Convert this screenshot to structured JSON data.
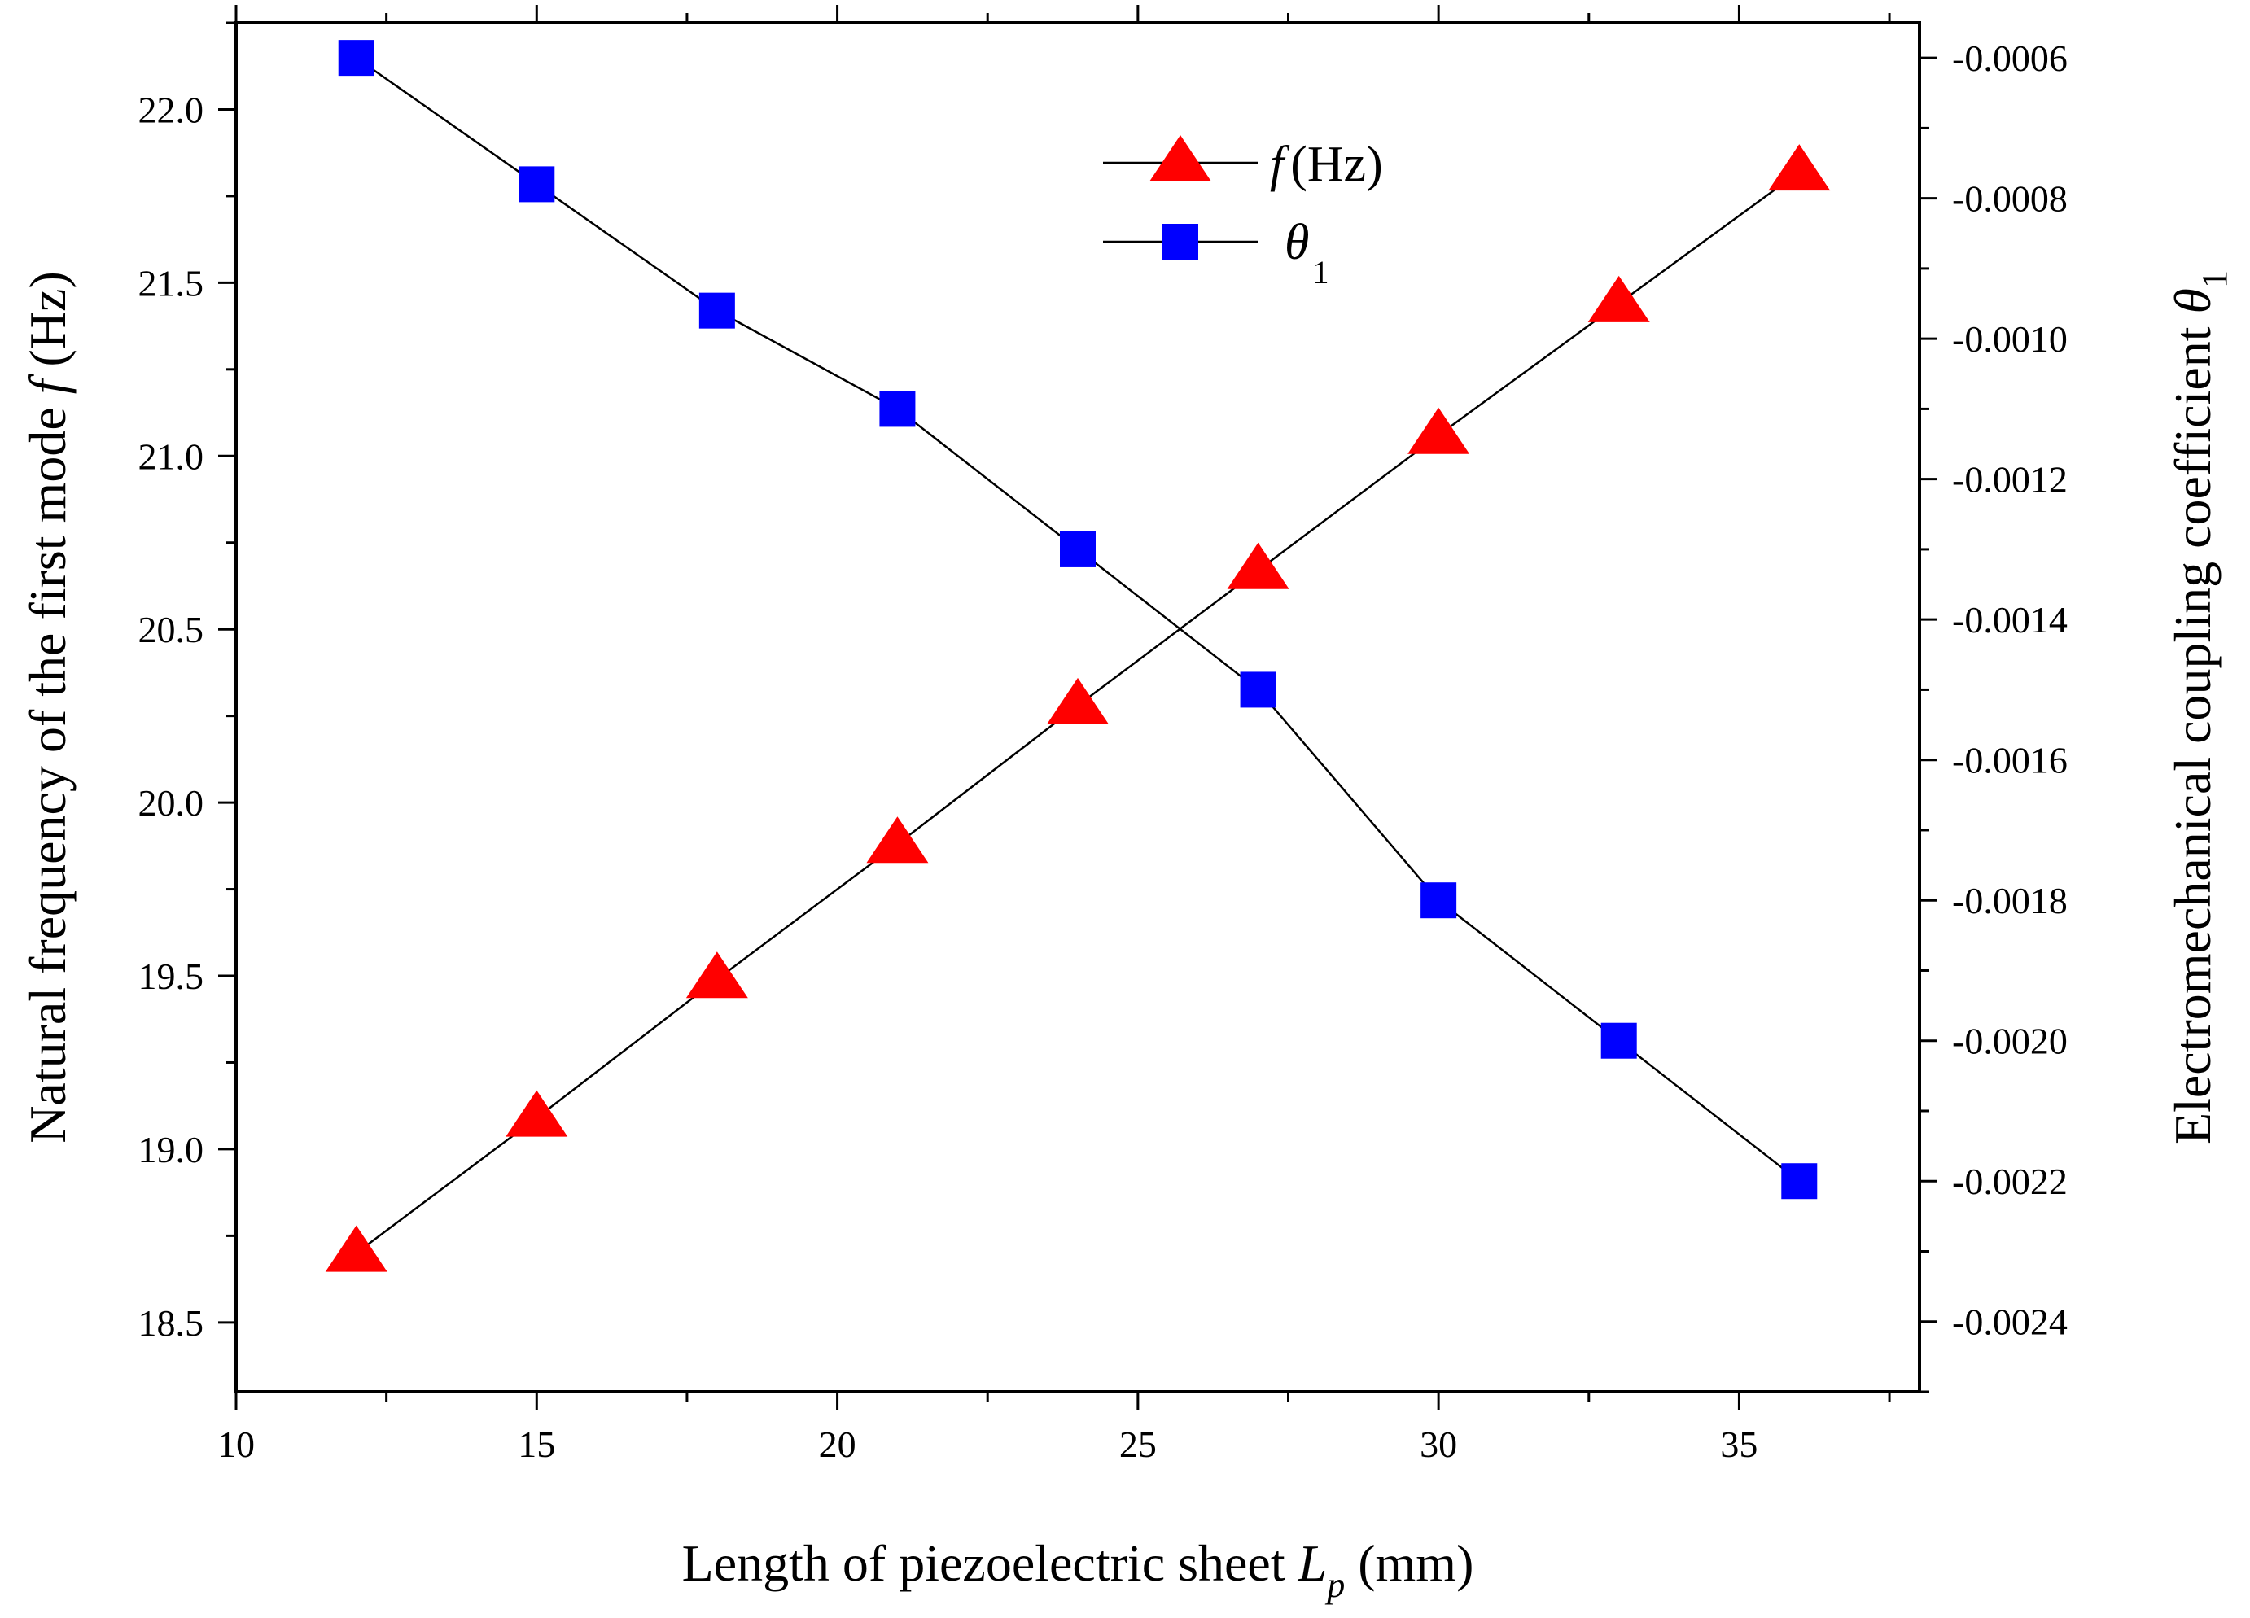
{
  "chart_data": {
    "type": "line",
    "x": [
      12,
      15,
      18,
      21,
      24,
      27,
      30,
      33,
      36
    ],
    "xlim": [
      10,
      38
    ],
    "xticks": [
      10,
      15,
      20,
      25,
      30,
      35
    ],
    "xtick_labels": [
      "10",
      "15",
      "20",
      "25",
      "30",
      "35"
    ],
    "xlabel": {
      "prefix": "Length of piezoelectric sheet ",
      "var": "L",
      "sub": "p",
      "suffix": " (mm)"
    },
    "left_axis": {
      "ylim": [
        18.3,
        22.25
      ],
      "ticks": [
        18.5,
        19.0,
        19.5,
        20.0,
        20.5,
        21.0,
        21.5,
        22.0
      ],
      "tick_labels": [
        "18.5",
        "19.0",
        "19.5",
        "20.0",
        "20.5",
        "21.0",
        "21.5",
        "22.0"
      ],
      "label": {
        "prefix": "Natural frequency of the first mode ",
        "var": "f",
        "suffix": " (Hz)"
      }
    },
    "right_axis": {
      "ylim": [
        -0.0025,
        -0.00055
      ],
      "ticks": [
        -0.0024,
        -0.0022,
        -0.002,
        -0.0018,
        -0.0016,
        -0.0014,
        -0.0012,
        -0.001,
        -0.0008,
        -0.0006
      ],
      "tick_labels": [
        "-0.0024",
        "-0.0022",
        "-0.0020",
        "-0.0018",
        "-0.0016",
        "-0.0014",
        "-0.0012",
        "-0.0010",
        "-0.0008",
        "-0.0006"
      ],
      "label": {
        "prefix": "Electromechanical coupling coefficient ",
        "var": "θ",
        "sub": "1"
      }
    },
    "series": [
      {
        "name": "f (Hz)",
        "legend_var": "f",
        "legend_rest": "(Hz)",
        "axis": "left",
        "marker": "triangle",
        "color": "#ff0000",
        "values": [
          18.7,
          19.09,
          19.49,
          19.88,
          20.28,
          20.67,
          21.06,
          21.44,
          21.82
        ]
      },
      {
        "name": "θ1",
        "legend_var": "θ",
        "legend_sub": "1",
        "axis": "right",
        "marker": "square",
        "color": "#0000ff",
        "values": [
          -0.0006,
          -0.00078,
          -0.00096,
          -0.0011,
          -0.0013,
          -0.0015,
          -0.0018,
          -0.002,
          -0.0022
        ]
      }
    ],
    "line_color": "#000000",
    "grid": false,
    "legend_position": "top-center"
  }
}
